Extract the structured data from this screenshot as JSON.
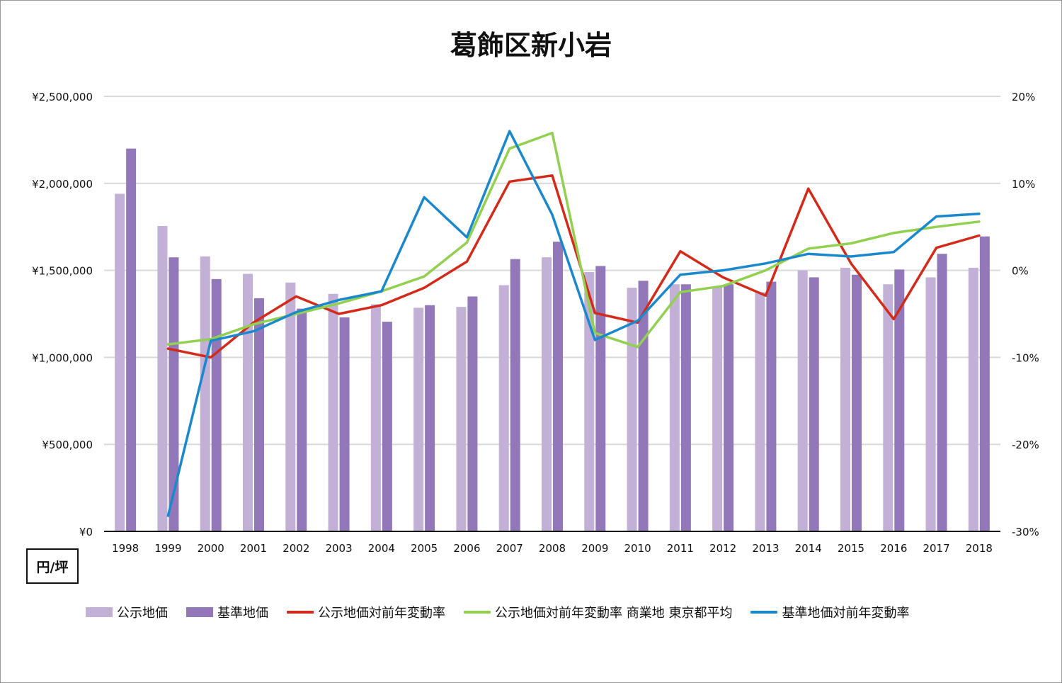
{
  "chart_data": {
    "type": "bar",
    "title": "葛飾区新小岩",
    "unit_label": "円/坪",
    "categories": [
      "1998",
      "1999",
      "2000",
      "2001",
      "2002",
      "2003",
      "2004",
      "2005",
      "2006",
      "2007",
      "2008",
      "2009",
      "2010",
      "2011",
      "2012",
      "2013",
      "2014",
      "2015",
      "2016",
      "2017",
      "2018"
    ],
    "left_axis": {
      "ylim": [
        0,
        2500000
      ],
      "ticks": [
        0,
        500000,
        1000000,
        1500000,
        2000000,
        2500000
      ],
      "tick_labels": [
        "¥0",
        "¥500,000",
        "¥1,000,000",
        "¥1,500,000",
        "¥2,000,000",
        "¥2,500,000"
      ]
    },
    "right_axis": {
      "ylim": [
        -30,
        20
      ],
      "ticks": [
        -30,
        -20,
        -10,
        0,
        10,
        20
      ],
      "tick_labels": [
        "-30%",
        "-20%",
        "-10%",
        "0%",
        "10%",
        "20%"
      ]
    },
    "grid": true,
    "legend_position": "bottom",
    "bar_series": [
      {
        "name": "公示地価",
        "color": "#c2b0d6",
        "values": [
          1940000,
          1755000,
          1580000,
          1480000,
          1430000,
          1365000,
          1305000,
          1285000,
          1290000,
          1415000,
          1575000,
          1490000,
          1400000,
          1420000,
          1405000,
          1375000,
          1500000,
          1515000,
          1420000,
          1460000,
          1515000
        ]
      },
      {
        "name": "基準地価",
        "color": "#9278b8",
        "values": [
          2200000,
          1575000,
          1450000,
          1340000,
          1280000,
          1230000,
          1205000,
          1300000,
          1350000,
          1565000,
          1665000,
          1525000,
          1440000,
          1420000,
          1420000,
          1435000,
          1460000,
          1475000,
          1505000,
          1595000,
          1695000
        ]
      }
    ],
    "line_series": [
      {
        "name": "公示地価対前年変動率",
        "color": "#d42a1a",
        "values": [
          null,
          -9.0,
          -10.0,
          -6.0,
          -3.0,
          -5.0,
          -4.0,
          -2.0,
          1.0,
          10.2,
          10.9,
          -4.9,
          -6.0,
          2.2,
          -0.8,
          -2.9,
          9.4,
          0.8,
          -5.6,
          2.6,
          4.0
        ]
      },
      {
        "name": "公示地価対前年変動率 商業地 東京都平均",
        "color": "#92d050",
        "values": [
          null,
          -8.5,
          -7.9,
          -6.2,
          -5.0,
          -3.8,
          -2.4,
          -0.7,
          3.2,
          14.0,
          15.8,
          -7.2,
          -8.8,
          -2.5,
          -1.8,
          0.0,
          2.5,
          3.1,
          4.3,
          5.0,
          5.6
        ]
      },
      {
        "name": "基準地価対前年変動率",
        "color": "#1a88cc",
        "values": [
          null,
          -28.2,
          -8.1,
          -7.0,
          -4.8,
          -3.4,
          -2.4,
          8.4,
          3.8,
          16.0,
          6.4,
          -8.0,
          -5.8,
          -0.5,
          0.0,
          0.8,
          1.9,
          1.6,
          2.1,
          6.2,
          6.5
        ]
      }
    ]
  }
}
